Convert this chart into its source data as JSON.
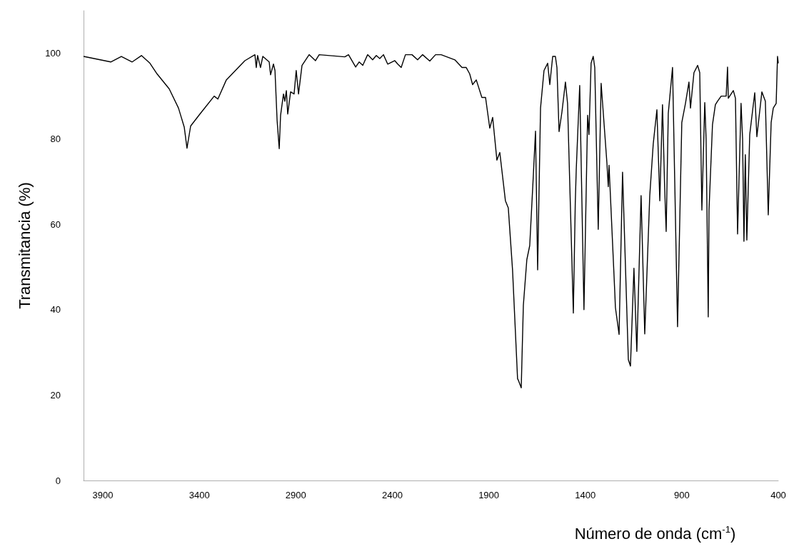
{
  "chart_data": {
    "type": "line",
    "xlabel": "Número de onda (cm$^{-1}$)",
    "ylabel": "Transmitancia (%)",
    "xlim": [
      4000,
      400
    ],
    "xticks": [
      3900,
      3400,
      2900,
      2400,
      1900,
      1400,
      900,
      400
    ],
    "ylim": [
      0,
      110
    ],
    "yticks": [
      0,
      20,
      40,
      60,
      80,
      100
    ],
    "grid": false,
    "marker": "none",
    "line_style": "solid",
    "x": [
      4000,
      3859,
      3804,
      3748,
      3700,
      3656,
      3619,
      3556,
      3508,
      3478,
      3464,
      3445,
      3397,
      3323,
      3304,
      3260,
      3164,
      3112,
      3105,
      3098,
      3083,
      3071,
      3038,
      3031,
      3016,
      3008,
      2997,
      2986,
      2979,
      2964,
      2957,
      2949,
      2942,
      2927,
      2909,
      2898,
      2886,
      2868,
      2831,
      2798,
      2779,
      2646,
      2627,
      2590,
      2572,
      2553,
      2528,
      2502,
      2483,
      2465,
      2446,
      2424,
      2387,
      2372,
      2354,
      2332,
      2298,
      2269,
      2243,
      2206,
      2176,
      2147,
      2076,
      2039,
      2017,
      1999,
      1984,
      1965,
      1936,
      1917,
      1895,
      1880,
      1858,
      1843,
      1814,
      1799,
      1777,
      1751,
      1747,
      1732,
      1721,
      1703,
      1688,
      1669,
      1658,
      1647,
      1632,
      1614,
      1595,
      1584,
      1569,
      1555,
      1547,
      1536,
      1521,
      1503,
      1492,
      1462,
      1452,
      1447,
      1429,
      1407,
      1388,
      1381,
      1370,
      1359,
      1351,
      1333,
      1318,
      1288,
      1281,
      1277,
      1247,
      1244,
      1225,
      1207,
      1177,
      1166,
      1148,
      1133,
      1111,
      1092,
      1066,
      1048,
      1029,
      1014,
      1000,
      989,
      981,
      970,
      948,
      922,
      900,
      881,
      863,
      855,
      837,
      818,
      807,
      796,
      781,
      774,
      763,
      759,
      741,
      726,
      715,
      696,
      670,
      663,
      659,
      633,
      622,
      611,
      593,
      585,
      578,
      571,
      563,
      548,
      522,
      511,
      485,
      467,
      452,
      437,
      426,
      411,
      404,
      400
    ],
    "series": [
      {
        "color": "#000000",
        "values": [
          99.3,
          98.0,
          99.3,
          98.0,
          99.5,
          97.7,
          95.2,
          91.7,
          87.2,
          82.7,
          77.8,
          83,
          85.8,
          90,
          89.3,
          93.8,
          98.3,
          99.7,
          96.7,
          99.5,
          96.7,
          99.3,
          98,
          95,
          97.5,
          96,
          84.3,
          77.7,
          85.5,
          90.5,
          88.8,
          91.3,
          85.8,
          91,
          90.5,
          96,
          90.5,
          97.2,
          99.7,
          98.3,
          99.7,
          99.2,
          99.7,
          96.8,
          98,
          97.2,
          99.7,
          98.5,
          99.5,
          98.8,
          99.7,
          97.5,
          98.3,
          97.5,
          96.7,
          99.7,
          99.7,
          98.5,
          99.7,
          98.2,
          99.7,
          99.7,
          98.5,
          96.7,
          96.7,
          95.2,
          92.7,
          93.8,
          89.7,
          89.7,
          82.5,
          85,
          75,
          76.8,
          65.5,
          63.8,
          49.3,
          23.8,
          23.5,
          21.7,
          41,
          51.7,
          55,
          71.7,
          81.8,
          49.3,
          87.2,
          96,
          97.7,
          92.7,
          99.3,
          99.3,
          96.7,
          81.7,
          86.3,
          93.3,
          88.3,
          39.2,
          65,
          72.7,
          92.5,
          40,
          85.5,
          81,
          97.7,
          99.3,
          96.7,
          58.8,
          93,
          74.3,
          68.8,
          73.8,
          43.8,
          40.5,
          34.2,
          72.2,
          28.3,
          26.8,
          49.7,
          30.2,
          66.7,
          34.3,
          66.7,
          78.8,
          86.8,
          65.5,
          88,
          68.8,
          58.3,
          86,
          96.7,
          36,
          83.8,
          88.3,
          93.3,
          87.2,
          95.5,
          97.2,
          95.5,
          63.3,
          88.5,
          80,
          38.3,
          63.3,
          83.3,
          88,
          88.8,
          90,
          90,
          96.8,
          89.5,
          91.3,
          89.5,
          57.7,
          88.3,
          80,
          56,
          76.3,
          56.3,
          81,
          90.8,
          80.5,
          91,
          88.8,
          62.2,
          83.8,
          87.2,
          88.3,
          99.3,
          97.7
        ]
      }
    ]
  }
}
